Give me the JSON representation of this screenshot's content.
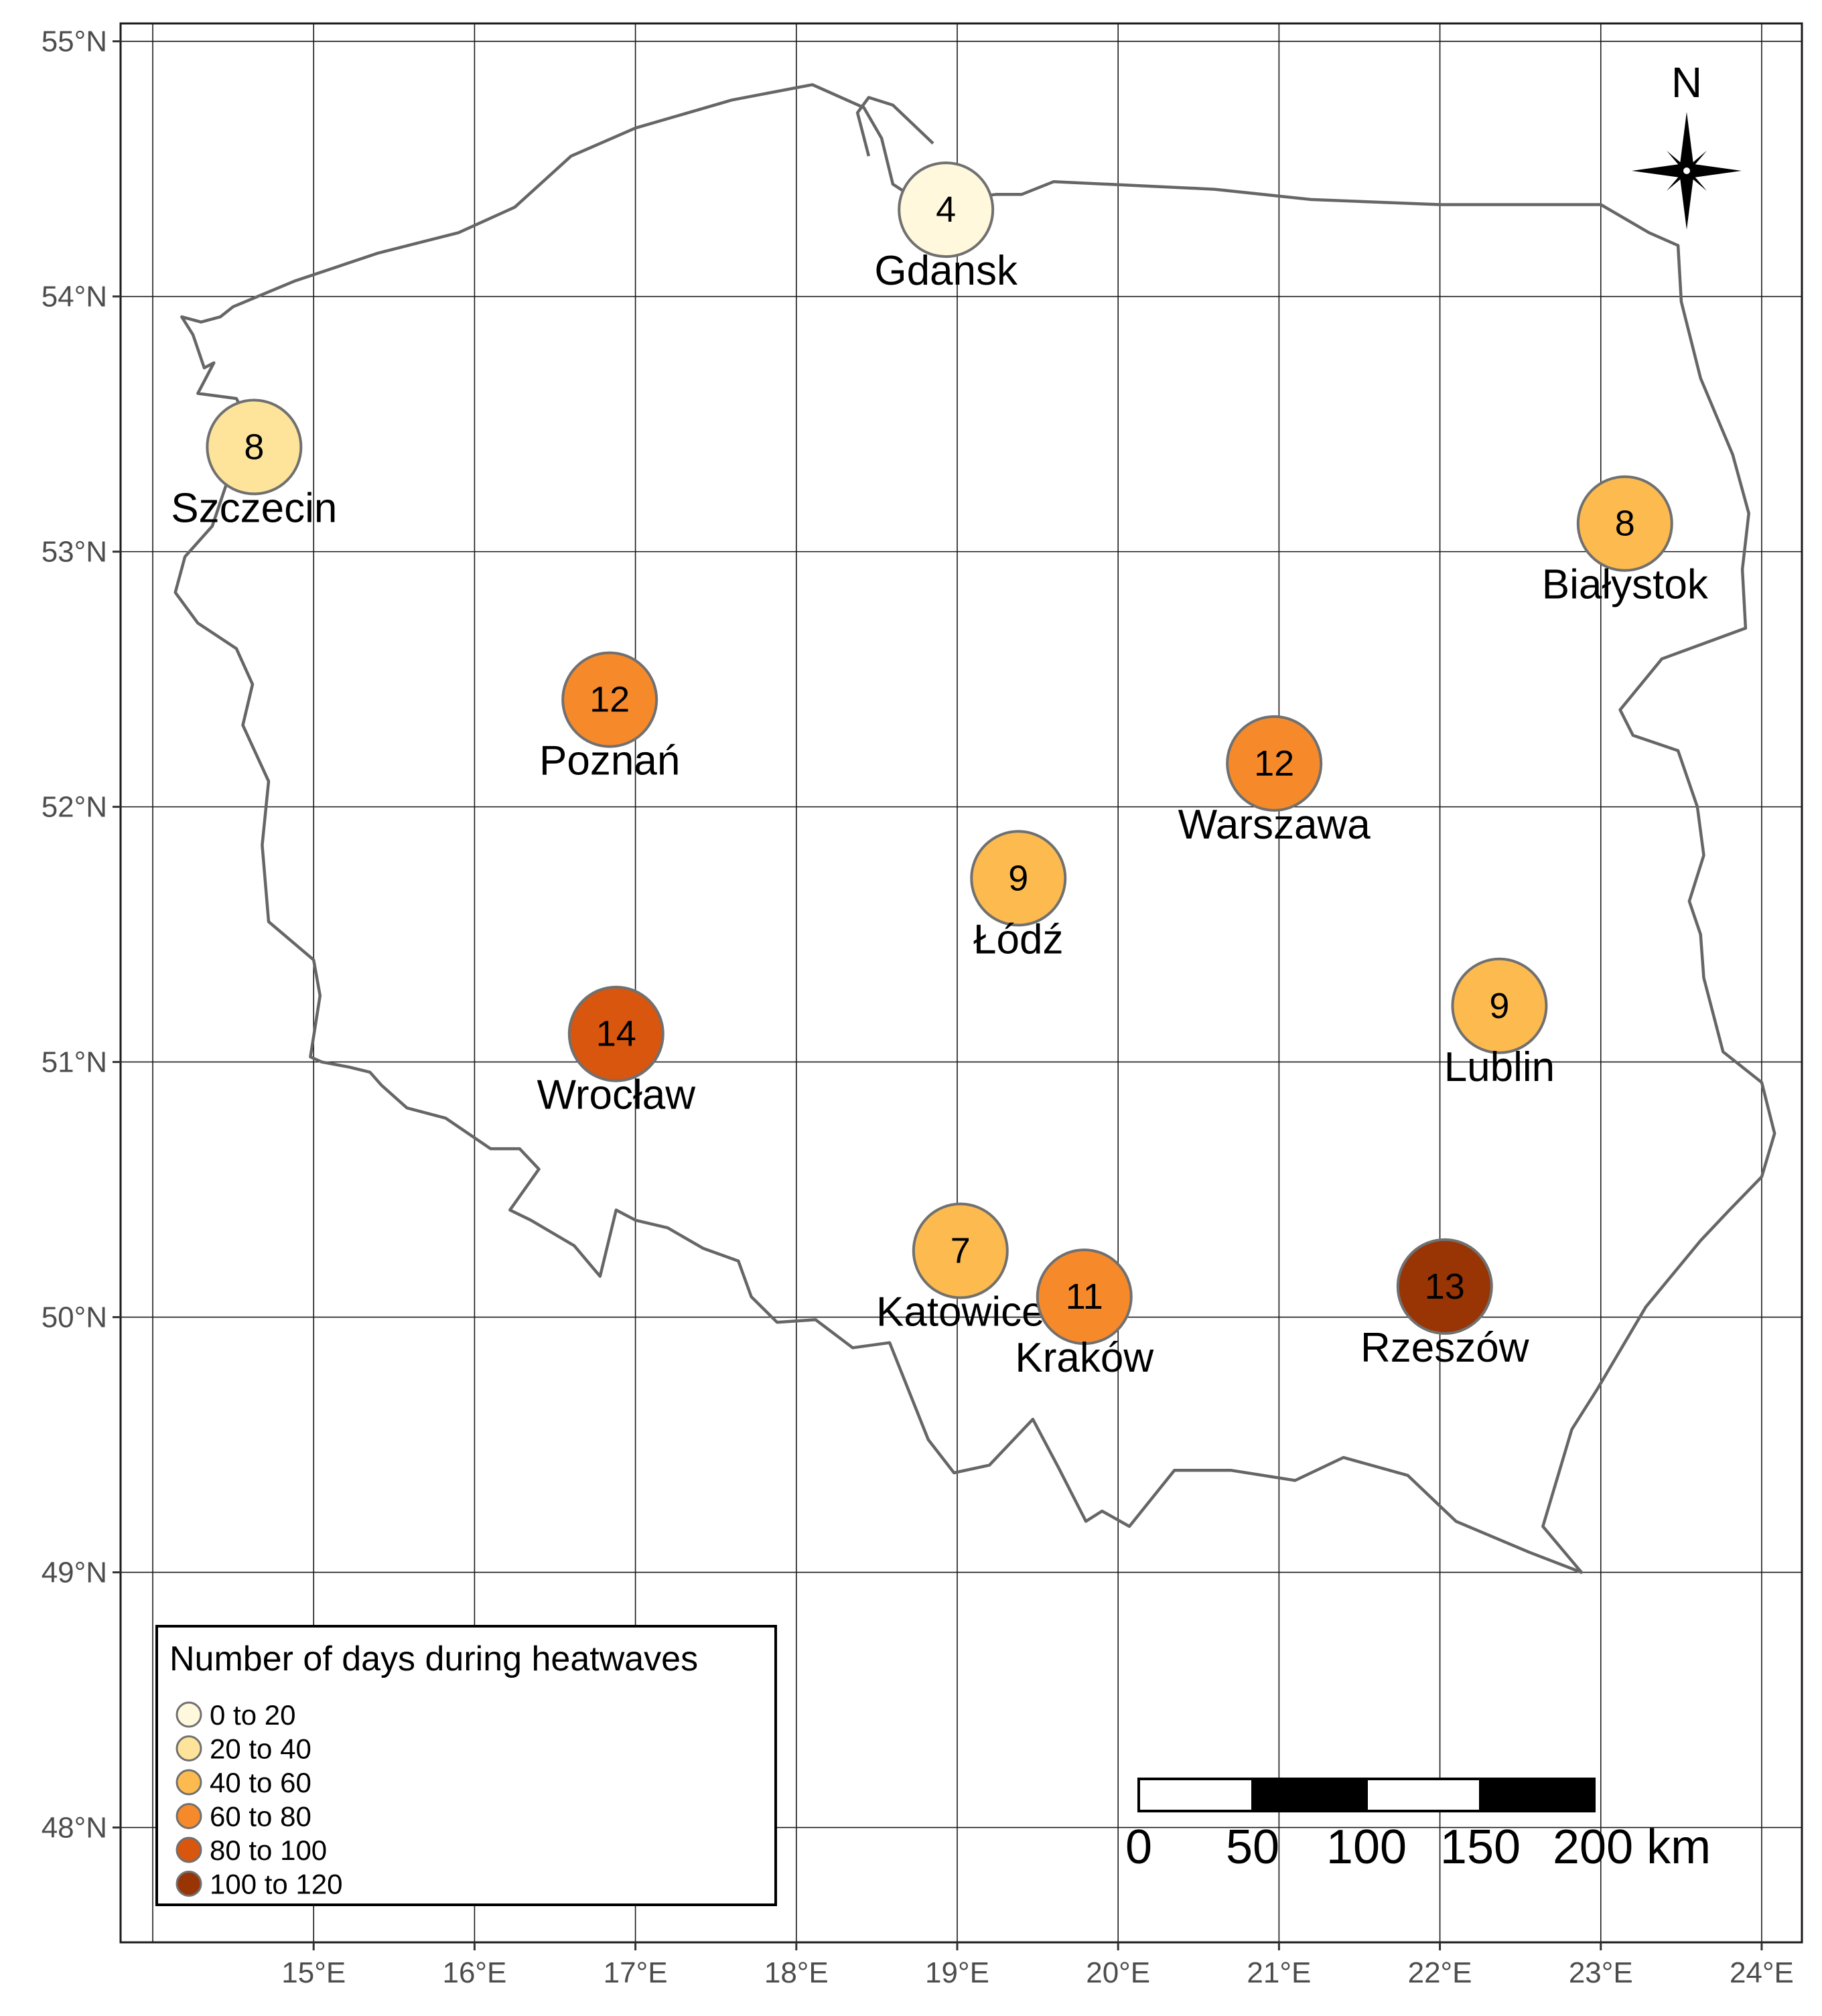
{
  "map": {
    "lon_range": [
      13.8,
      24.25
    ],
    "lat_range": [
      47.55,
      55.07
    ],
    "gridlines": true,
    "lon_ticks": [
      {
        "value": 15,
        "label": "15°E"
      },
      {
        "value": 16,
        "label": "16°E"
      },
      {
        "value": 17,
        "label": "17°E"
      },
      {
        "value": 18,
        "label": "18°E"
      },
      {
        "value": 19,
        "label": "19°E"
      },
      {
        "value": 20,
        "label": "20°E"
      },
      {
        "value": 21,
        "label": "21°E"
      },
      {
        "value": 22,
        "label": "22°E"
      },
      {
        "value": 23,
        "label": "23°E"
      },
      {
        "value": 24,
        "label": "24°E"
      }
    ],
    "lat_ticks": [
      {
        "value": 55,
        "label": "55°N"
      },
      {
        "value": 54,
        "label": "54°N"
      },
      {
        "value": 53,
        "label": "53°N"
      },
      {
        "value": 52,
        "label": "52°N"
      },
      {
        "value": 51,
        "label": "51°N"
      },
      {
        "value": 50,
        "label": "50°N"
      },
      {
        "value": 49,
        "label": "49°N"
      },
      {
        "value": 48,
        "label": "48°N"
      }
    ],
    "extra_gridlines": {
      "lon": [
        14
      ],
      "lat": []
    },
    "border_color": "#666666",
    "border": [
      [
        14.18,
        53.92
      ],
      [
        14.25,
        53.85
      ],
      [
        14.32,
        53.72
      ],
      [
        14.38,
        53.74
      ],
      [
        14.28,
        53.62
      ],
      [
        14.52,
        53.6
      ],
      [
        14.62,
        53.48
      ],
      [
        14.58,
        53.4
      ],
      [
        14.5,
        53.34
      ],
      [
        14.45,
        53.25
      ],
      [
        14.37,
        53.1
      ],
      [
        14.2,
        52.98
      ],
      [
        14.14,
        52.84
      ],
      [
        14.28,
        52.72
      ],
      [
        14.52,
        52.62
      ],
      [
        14.62,
        52.48
      ],
      [
        14.56,
        52.32
      ],
      [
        14.72,
        52.1
      ],
      [
        14.68,
        51.85
      ],
      [
        14.72,
        51.55
      ],
      [
        15.0,
        51.4
      ],
      [
        15.04,
        51.26
      ],
      [
        14.98,
        51.02
      ],
      [
        15.05,
        51.0
      ],
      [
        15.22,
        50.98
      ],
      [
        15.35,
        50.96
      ],
      [
        15.42,
        50.91
      ],
      [
        15.58,
        50.82
      ],
      [
        15.82,
        50.78
      ],
      [
        16.1,
        50.66
      ],
      [
        16.28,
        50.66
      ],
      [
        16.4,
        50.58
      ],
      [
        16.22,
        50.42
      ],
      [
        16.35,
        50.38
      ],
      [
        16.62,
        50.28
      ],
      [
        16.78,
        50.16
      ],
      [
        16.88,
        50.42
      ],
      [
        17.0,
        50.38
      ],
      [
        17.2,
        50.35
      ],
      [
        17.42,
        50.27
      ],
      [
        17.64,
        50.22
      ],
      [
        17.72,
        50.08
      ],
      [
        17.88,
        49.98
      ],
      [
        18.12,
        49.99
      ],
      [
        18.35,
        49.88
      ],
      [
        18.58,
        49.9
      ],
      [
        18.82,
        49.52
      ],
      [
        18.98,
        49.39
      ],
      [
        19.2,
        49.42
      ],
      [
        19.47,
        49.6
      ],
      [
        19.63,
        49.41
      ],
      [
        19.8,
        49.2
      ],
      [
        19.9,
        49.24
      ],
      [
        20.07,
        49.18
      ],
      [
        20.35,
        49.4
      ],
      [
        20.7,
        49.4
      ],
      [
        21.1,
        49.36
      ],
      [
        21.4,
        49.45
      ],
      [
        21.8,
        49.38
      ],
      [
        22.1,
        49.2
      ],
      [
        22.55,
        49.08
      ],
      [
        22.88,
        49.0
      ],
      [
        22.64,
        49.18
      ],
      [
        22.82,
        49.56
      ],
      [
        22.98,
        49.72
      ],
      [
        23.28,
        50.04
      ],
      [
        23.62,
        50.3
      ],
      [
        23.8,
        50.42
      ],
      [
        24.0,
        50.55
      ],
      [
        24.08,
        50.72
      ],
      [
        24.0,
        50.92
      ],
      [
        23.76,
        51.04
      ],
      [
        23.64,
        51.33
      ],
      [
        23.62,
        51.5
      ],
      [
        23.55,
        51.63
      ],
      [
        23.64,
        51.81
      ],
      [
        23.6,
        52.0
      ],
      [
        23.48,
        52.22
      ],
      [
        23.2,
        52.28
      ],
      [
        23.12,
        52.38
      ],
      [
        23.38,
        52.58
      ],
      [
        23.9,
        52.7
      ],
      [
        23.88,
        52.93
      ],
      [
        23.92,
        53.15
      ],
      [
        23.82,
        53.38
      ],
      [
        23.62,
        53.68
      ],
      [
        23.5,
        53.98
      ],
      [
        23.48,
        54.2
      ],
      [
        23.3,
        54.25
      ],
      [
        23.0,
        54.36
      ],
      [
        22.8,
        54.36
      ],
      [
        22.0,
        54.36
      ],
      [
        21.2,
        54.38
      ],
      [
        20.6,
        54.42
      ],
      [
        19.6,
        54.45
      ],
      [
        19.4,
        54.4
      ],
      [
        19.24,
        54.4
      ],
      [
        18.98,
        54.38
      ],
      [
        18.82,
        54.35
      ],
      [
        18.6,
        54.44
      ],
      [
        18.53,
        54.62
      ],
      [
        18.42,
        54.74
      ],
      [
        18.1,
        54.83
      ],
      [
        17.6,
        54.77
      ],
      [
        17.0,
        54.66
      ],
      [
        16.6,
        54.55
      ],
      [
        16.25,
        54.35
      ],
      [
        15.9,
        54.25
      ],
      [
        15.4,
        54.17
      ],
      [
        14.88,
        54.06
      ],
      [
        14.5,
        53.96
      ],
      [
        14.42,
        53.92
      ],
      [
        14.3,
        53.9
      ],
      [
        14.18,
        53.92
      ]
    ],
    "coast_extra": [
      [
        18.85,
        54.6
      ],
      [
        18.6,
        54.75
      ],
      [
        18.45,
        54.78
      ],
      [
        18.38,
        54.72
      ],
      [
        18.45,
        54.55
      ]
    ]
  },
  "cities": [
    {
      "name": "Gdansk",
      "value": "4",
      "lon": 18.93,
      "lat": 54.34,
      "class": "0 to 20"
    },
    {
      "name": "Szczecin",
      "value": "8",
      "lon": 14.63,
      "lat": 53.41,
      "class": "20 to 40"
    },
    {
      "name": "Białystok",
      "value": "8",
      "lon": 23.15,
      "lat": 53.11,
      "class": "40 to 60"
    },
    {
      "name": "Poznań",
      "value": "12",
      "lon": 16.84,
      "lat": 52.42,
      "class": "60 to 80"
    },
    {
      "name": "Warszawa",
      "value": "12",
      "lon": 20.97,
      "lat": 52.17,
      "class": "60 to 80"
    },
    {
      "name": "Łódź",
      "value": "9",
      "lon": 19.38,
      "lat": 51.72,
      "class": "40 to 60"
    },
    {
      "name": "Lublin",
      "value": "9",
      "lon": 22.37,
      "lat": 51.22,
      "class": "40 to 60"
    },
    {
      "name": "Wrocław",
      "value": "14",
      "lon": 16.88,
      "lat": 51.11,
      "class": "80 to 100"
    },
    {
      "name": "Katowice",
      "value": "7",
      "lon": 19.02,
      "lat": 50.26,
      "class": "40 to 60"
    },
    {
      "name": "Kraków",
      "value": "11",
      "lon": 19.79,
      "lat": 50.08,
      "class": "60 to 80"
    },
    {
      "name": "Rzeszów",
      "value": "13",
      "lon": 22.03,
      "lat": 50.12,
      "class": "100 to 120"
    }
  ],
  "legend": {
    "title": "Number of days during heatwaves",
    "position": "bottom-left",
    "items": [
      {
        "label": "0 to 20",
        "color": "#fff8dc"
      },
      {
        "label": "20 to 40",
        "color": "#fee49a"
      },
      {
        "label": "40 to 60",
        "color": "#fdbb4f"
      },
      {
        "label": "60 to 80",
        "color": "#f68a2a"
      },
      {
        "label": "80 to 100",
        "color": "#d8560e"
      },
      {
        "label": "100 to 120",
        "color": "#993404"
      }
    ]
  },
  "scale_bar": {
    "labels": [
      "0",
      "50",
      "100",
      "150",
      "200 km"
    ]
  },
  "north_arrow": {
    "label": "N"
  }
}
